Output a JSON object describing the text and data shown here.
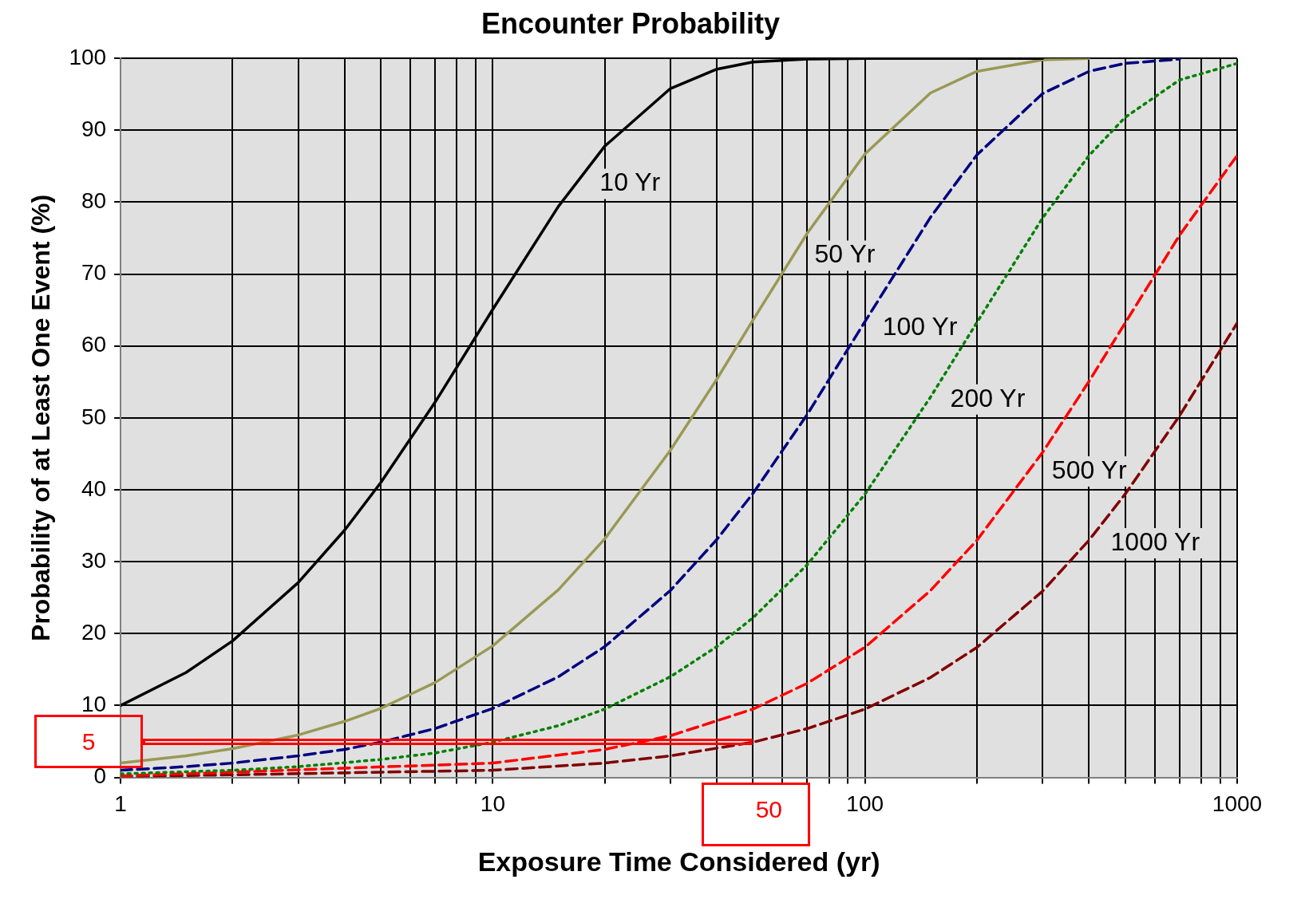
{
  "chart_data": {
    "type": "line",
    "title": "Encounter Probability",
    "xlabel": "Exposure Time Considered (yr)",
    "ylabel": "Probability of at Least One Event (%)",
    "log": "x",
    "grid": true,
    "legend": false,
    "marker": "none",
    "xlim": [
      1,
      1000
    ],
    "xticks": [
      1,
      {
        "value": 2,
        "label": null
      },
      {
        "value": 3,
        "label": null
      },
      {
        "value": 4,
        "label": null
      },
      {
        "value": 5,
        "label": null
      },
      {
        "value": 6,
        "label": null
      },
      {
        "value": 7,
        "label": null
      },
      {
        "value": 8,
        "label": null
      },
      {
        "value": 9,
        "label": null
      },
      10,
      {
        "value": 20,
        "label": null
      },
      {
        "value": 30,
        "label": null
      },
      {
        "value": 40,
        "label": null
      },
      {
        "value": 50,
        "label": null
      },
      {
        "value": 60,
        "label": null
      },
      {
        "value": 70,
        "label": null
      },
      {
        "value": 80,
        "label": null
      },
      {
        "value": 90,
        "label": null
      },
      100,
      {
        "value": 200,
        "label": null
      },
      {
        "value": 300,
        "label": null
      },
      {
        "value": 400,
        "label": null
      },
      {
        "value": 500,
        "label": null
      },
      {
        "value": 600,
        "label": null
      },
      {
        "value": 700,
        "label": null
      },
      {
        "value": 800,
        "label": null
      },
      {
        "value": 900,
        "label": null
      },
      1000
    ],
    "ylim": [
      0,
      100
    ],
    "yticks": [
      0,
      10,
      20,
      30,
      40,
      50,
      60,
      70,
      80,
      90,
      100
    ],
    "series": [
      {
        "name": "10 Yr",
        "color": "#000000",
        "line_style": "solid",
        "x": [
          1,
          1.5,
          2,
          3,
          4,
          5,
          7,
          10,
          15,
          20,
          30,
          40,
          50,
          70,
          100,
          150,
          200,
          300
        ],
        "values": [
          10,
          14.6,
          19,
          27.1,
          34.4,
          41,
          52.2,
          65.1,
          79.4,
          87.8,
          95.8,
          98.5,
          99.5,
          99.9,
          100,
          100,
          100,
          100
        ]
      },
      {
        "name": "50 Yr",
        "color": "#999955",
        "line_style": "solid",
        "x": [
          1,
          1.5,
          2,
          3,
          4,
          5,
          7,
          10,
          15,
          20,
          30,
          40,
          50,
          70,
          100,
          150,
          200,
          300,
          400
        ],
        "values": [
          2,
          3,
          4,
          5.9,
          7.8,
          9.6,
          13.2,
          18.3,
          26.1,
          33.2,
          45.5,
          55.4,
          63.6,
          75.7,
          86.7,
          95.2,
          98.2,
          99.8,
          100
        ]
      },
      {
        "name": "100 Yr",
        "color": "#000080",
        "line_style": "dashed",
        "x": [
          1,
          1.5,
          2,
          3,
          4,
          5,
          7,
          10,
          15,
          20,
          30,
          40,
          50,
          70,
          100,
          150,
          200,
          300,
          400,
          500,
          700
        ],
        "values": [
          1,
          1.5,
          2,
          3,
          3.9,
          4.9,
          6.8,
          9.6,
          14,
          18.2,
          26,
          33.1,
          39.5,
          50.5,
          63.4,
          77.9,
          86.6,
          95.1,
          98.2,
          99.3,
          99.9
        ]
      },
      {
        "name": "200 Yr",
        "color": "#008000",
        "line_style": "dotted",
        "x": [
          1,
          2,
          3,
          5,
          7,
          10,
          15,
          20,
          30,
          40,
          50,
          70,
          100,
          150,
          200,
          300,
          400,
          500,
          700,
          1000
        ],
        "values": [
          0.5,
          1,
          1.5,
          2.5,
          3.4,
          4.9,
          7.2,
          9.5,
          14,
          18.2,
          22.2,
          29.6,
          39.4,
          52.9,
          63.3,
          77.8,
          86.5,
          91.8,
          97,
          99.3
        ]
      },
      {
        "name": "500 Yr",
        "color": "#ff0000",
        "line_style": "dashed",
        "x": [
          1,
          10,
          20,
          30,
          50,
          70,
          100,
          150,
          200,
          300,
          400,
          500,
          700,
          1000
        ],
        "values": [
          0.2,
          2,
          3.9,
          5.8,
          9.5,
          13.1,
          18.1,
          26,
          33,
          45.2,
          55.1,
          63.2,
          75.4,
          86.5
        ]
      },
      {
        "name": "1000 Yr",
        "color": "#800000",
        "line_style": "dashed",
        "x": [
          1,
          10,
          20,
          30,
          50,
          70,
          100,
          150,
          200,
          300,
          400,
          500,
          700,
          1000
        ],
        "values": [
          0.1,
          1,
          2,
          3,
          4.9,
          6.8,
          9.5,
          13.9,
          18.1,
          25.9,
          33,
          39.4,
          50.3,
          63.2
        ]
      }
    ],
    "annotations": [
      "5",
      "50"
    ]
  }
}
